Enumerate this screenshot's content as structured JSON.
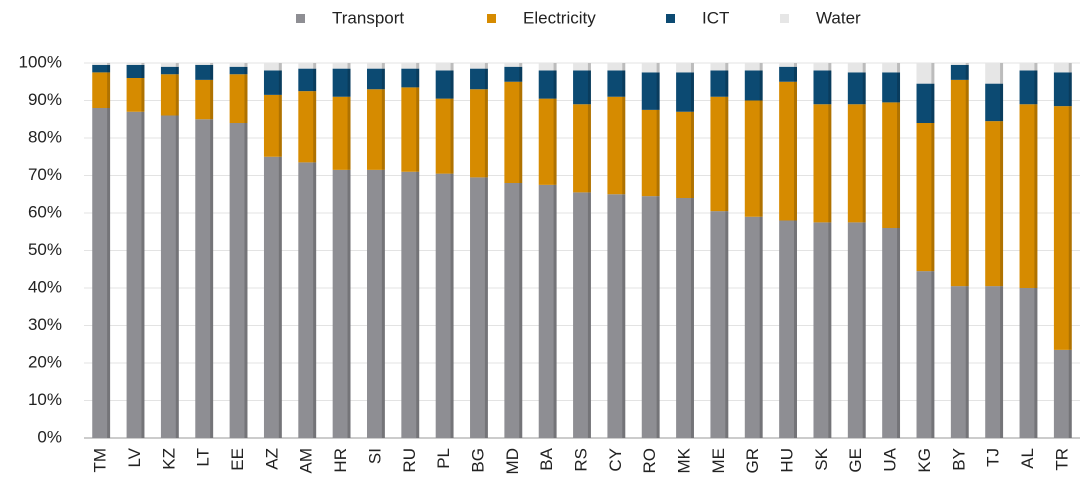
{
  "chart_data": {
    "type": "stacked_bar",
    "categories": [
      "TM",
      "LV",
      "KZ",
      "LT",
      "EE",
      "AZ",
      "AM",
      "HR",
      "SI",
      "RU",
      "PL",
      "BG",
      "MD",
      "BA",
      "RS",
      "CY",
      "RO",
      "MK",
      "ME",
      "GR",
      "HU",
      "SK",
      "GE",
      "UA",
      "KG",
      "BY",
      "TJ",
      "AL",
      "TR"
    ],
    "series": [
      {
        "name": "Transport",
        "color": "#8e8e93",
        "values": [
          88,
          87,
          86,
          85,
          84,
          75,
          73.5,
          71.5,
          71.5,
          71,
          70.5,
          69.5,
          68,
          67.5,
          65.5,
          65,
          64.5,
          64,
          60.5,
          59,
          58,
          57.5,
          57.5,
          56,
          44.5,
          40.5,
          40.5,
          40,
          23.5
        ]
      },
      {
        "name": "Electricity",
        "color": "#d68b00",
        "values": [
          9.5,
          9,
          11,
          10.5,
          13,
          16.5,
          19,
          19.5,
          21.5,
          22.5,
          20,
          23.5,
          27,
          23,
          23.5,
          26,
          23,
          23,
          30.5,
          31,
          37,
          31.5,
          31.5,
          33.5,
          39.5,
          55,
          44,
          49,
          65
        ]
      },
      {
        "name": "ICT",
        "color": "#0c4a72",
        "values": [
          2,
          3.5,
          2,
          4,
          2,
          6.5,
          6,
          7.5,
          5.5,
          5,
          7.5,
          5.5,
          4,
          7.5,
          9,
          7,
          10,
          10.5,
          7,
          8,
          4,
          9,
          8.5,
          8,
          10.5,
          4,
          10,
          9,
          9
        ]
      },
      {
        "name": "Water",
        "color": "#e6e6e6",
        "values": [
          0.5,
          0.5,
          1,
          0.5,
          1,
          2,
          1.5,
          1.5,
          1.5,
          1.5,
          2,
          1.5,
          1,
          2,
          2,
          2,
          2.5,
          2.5,
          2,
          2,
          1,
          2,
          2.5,
          2.5,
          5.5,
          0.5,
          5.5,
          2,
          2.5
        ]
      }
    ],
    "ylim": [
      0,
      100
    ],
    "yticks": [
      {
        "value": 0,
        "label": "0%"
      },
      {
        "value": 10,
        "label": "10%"
      },
      {
        "value": 20,
        "label": "20%"
      },
      {
        "value": 30,
        "label": "30%"
      },
      {
        "value": 40,
        "label": "40%"
      },
      {
        "value": 50,
        "label": "50%"
      },
      {
        "value": 60,
        "label": "60%"
      },
      {
        "value": 70,
        "label": "70%"
      },
      {
        "value": 80,
        "label": "80%"
      },
      {
        "value": 90,
        "label": "90%"
      },
      {
        "value": 100,
        "label": "100%"
      }
    ],
    "grid": true,
    "legend": "top"
  }
}
